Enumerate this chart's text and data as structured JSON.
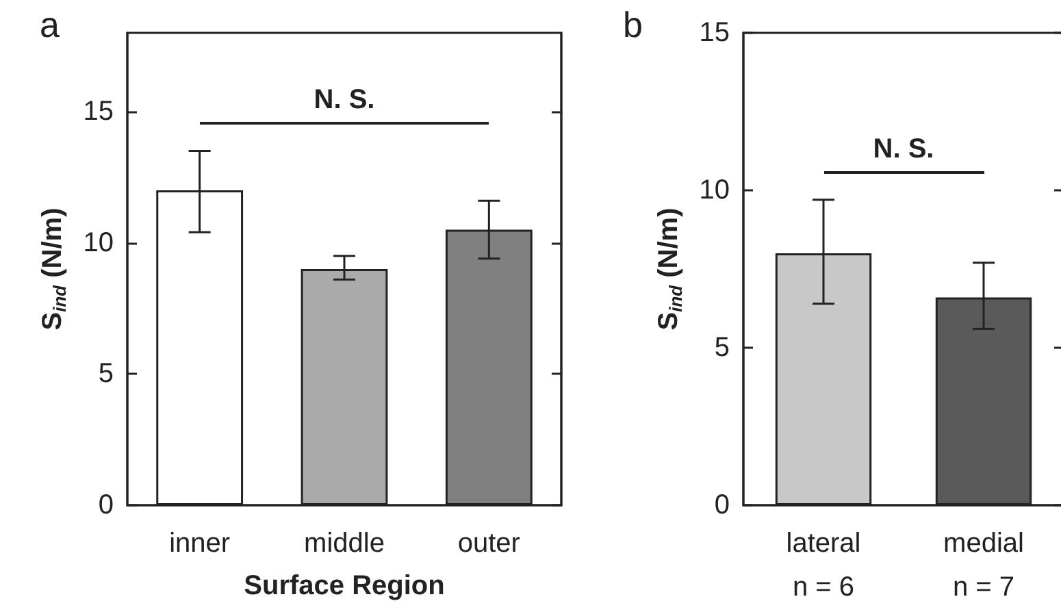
{
  "chart_data": [
    {
      "type": "bar",
      "title": "a",
      "xlabel": "Surface Region",
      "ylabel": "S$_{ind}$ (N/m)",
      "categories": [
        "inner",
        "middle",
        "outer"
      ],
      "values": [
        12.0,
        9.0,
        10.5
      ],
      "colors": [
        "#ffffff",
        "#aaaaaa",
        "#808080"
      ],
      "errors": [
        [
          10.4,
          13.5
        ],
        [
          8.6,
          9.5
        ],
        [
          9.4,
          11.6
        ]
      ],
      "ylim": [
        0,
        18
      ],
      "yticks": [
        0,
        5,
        10,
        15
      ],
      "annotations": [
        "N. S."
      ],
      "grid": false
    },
    {
      "type": "bar",
      "title": "b",
      "ylabel": "S$_{ind}$ (N/m)",
      "categories": [
        "lateral\nn = 6",
        "medial\nn = 7"
      ],
      "values": [
        8.0,
        6.6
      ],
      "colors": [
        "#c8c8c8",
        "#5a5a5a"
      ],
      "errors": [
        [
          6.4,
          9.7
        ],
        [
          5.6,
          7.7
        ]
      ],
      "ylim": [
        0,
        15
      ],
      "yticks": [
        0,
        5,
        10,
        15
      ],
      "annotations": [
        "N. S."
      ],
      "grid": false
    }
  ]
}
